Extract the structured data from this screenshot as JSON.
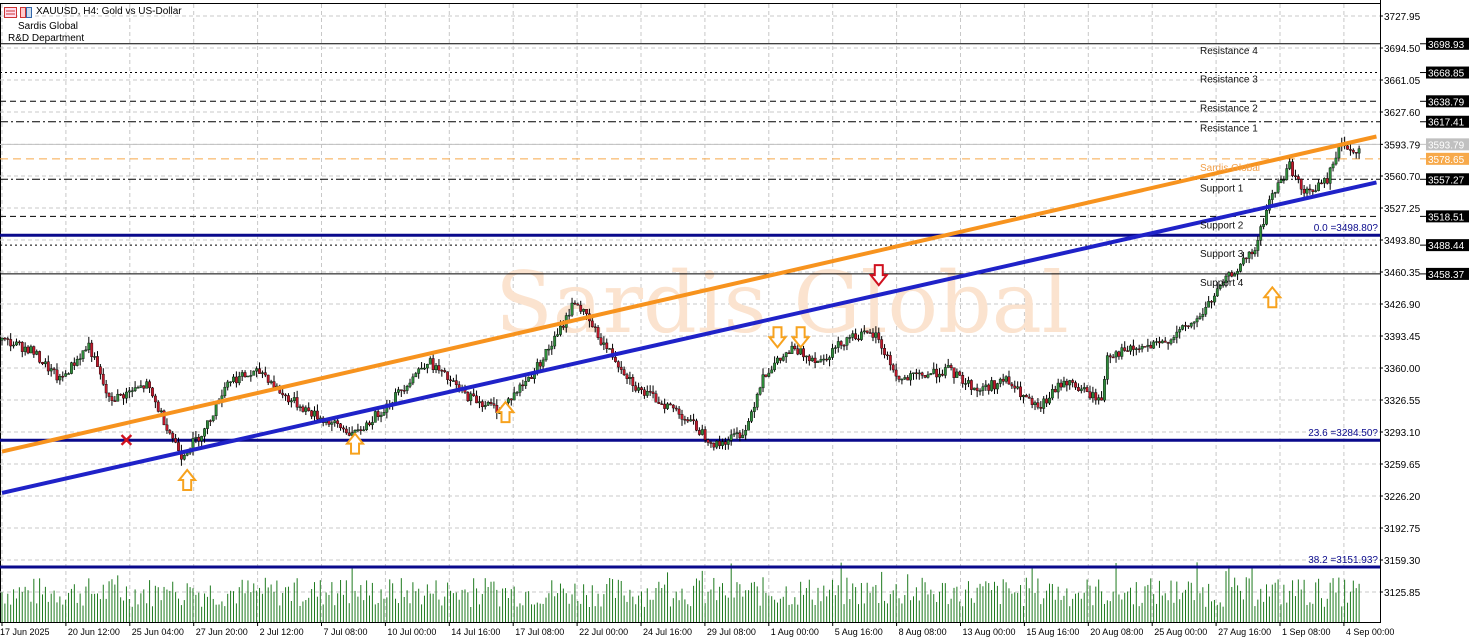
{
  "header": {
    "symbol_title": "XAUUSD, H4:  Gold vs US-Dollar",
    "company": "Sardis Global",
    "department": "R&D Department",
    "icons": [
      "candlestick-menu-icon",
      "template-icon"
    ]
  },
  "watermark": "Sardis Global",
  "colors": {
    "orange_trend": "#f7931e",
    "blue_trend": "#1f22c8",
    "fib_line": "#0a0a8c",
    "bull_candle": "#2e8b3a",
    "bear_candle": "#c0182a",
    "volume": "#1e7a1e",
    "watermark": "#fbe3cf",
    "arrow_up": "#f7a21e",
    "arrow_down_red": "#d0101e"
  },
  "chart_data": {
    "type": "candlestick",
    "symbol": "XAUUSD",
    "timeframe": "H4",
    "ylim": [
      3110,
      3742
    ],
    "y_ticks": [
      3727.95,
      3694.5,
      3661.05,
      3627.6,
      3593.79,
      3560.7,
      3527.25,
      3493.8,
      3460.35,
      3426.9,
      3393.45,
      3360.0,
      3326.55,
      3293.1,
      3259.65,
      3226.2,
      3192.75,
      3159.3,
      3125.85
    ],
    "x_labels": [
      "17 Jun 2025",
      "20 Jun 12:00",
      "25 Jun 04:00",
      "27 Jun 20:00",
      "2 Jul 12:00",
      "7 Jul 08:00",
      "10 Jul 00:00",
      "14 Jul 16:00",
      "17 Jul 08:00",
      "22 Jul 00:00",
      "24 Jul 16:00",
      "29 Jul 08:00",
      "1 Aug 00:00",
      "5 Aug 16:00",
      "8 Aug 08:00",
      "13 Aug 00:00",
      "15 Aug 16:00",
      "20 Aug 08:00",
      "25 Aug 00:00",
      "27 Aug 16:00",
      "1 Sep 08:00",
      "4 Sep 00:00"
    ],
    "total_bars": 470,
    "price_path": [
      [
        0,
        3389
      ],
      [
        10,
        3379
      ],
      [
        20,
        3347
      ],
      [
        30,
        3384
      ],
      [
        37,
        3326
      ],
      [
        50,
        3342
      ],
      [
        62,
        3269
      ],
      [
        70,
        3295
      ],
      [
        78,
        3347
      ],
      [
        90,
        3356
      ],
      [
        97,
        3332
      ],
      [
        108,
        3311
      ],
      [
        122,
        3290
      ],
      [
        133,
        3321
      ],
      [
        147,
        3368
      ],
      [
        160,
        3332
      ],
      [
        172,
        3316
      ],
      [
        183,
        3353
      ],
      [
        192,
        3394
      ],
      [
        198,
        3431
      ],
      [
        207,
        3389
      ],
      [
        220,
        3337
      ],
      [
        233,
        3316
      ],
      [
        247,
        3279
      ],
      [
        257,
        3295
      ],
      [
        263,
        3353
      ],
      [
        273,
        3379
      ],
      [
        283,
        3368
      ],
      [
        293,
        3394
      ],
      [
        302,
        3394
      ],
      [
        310,
        3347
      ],
      [
        327,
        3358
      ],
      [
        337,
        3337
      ],
      [
        347,
        3347
      ],
      [
        358,
        3316
      ],
      [
        367,
        3347
      ],
      [
        380,
        3326
      ],
      [
        382,
        3374
      ],
      [
        400,
        3384
      ],
      [
        413,
        3410
      ],
      [
        423,
        3452
      ],
      [
        433,
        3483
      ],
      [
        438,
        3535
      ],
      [
        445,
        3572
      ],
      [
        450,
        3541
      ],
      [
        458,
        3556
      ],
      [
        462,
        3593
      ],
      [
        466,
        3588
      ]
    ],
    "current_price": 3593.79,
    "levels": [
      {
        "label": "Resistance 4",
        "price": 3698.93,
        "style": "solid"
      },
      {
        "label": "Resistance 3",
        "price": 3668.85,
        "style": "dotted"
      },
      {
        "label": "Resistance 2",
        "price": 3638.79,
        "style": "dashed"
      },
      {
        "label": "Resistance 1",
        "price": 3617.41,
        "style": "dashdot"
      },
      {
        "label": "Sardis Global",
        "price": 3578.65,
        "style": "orange-dashed"
      },
      {
        "label": "Support 1",
        "price": 3557.27,
        "style": "dashdot"
      },
      {
        "label": "Support 2",
        "price": 3518.51,
        "style": "dashed"
      },
      {
        "label": "Support 3",
        "price": 3488.44,
        "style": "dotted"
      },
      {
        "label": "Support 4",
        "price": 3458.37,
        "style": "solid"
      }
    ],
    "fibonacci": [
      {
        "label": "0.0 =3498.80?",
        "price": 3498.8
      },
      {
        "label": "23.6 =3284.50?",
        "price": 3284.5
      },
      {
        "label": "38.2 =3151.93?",
        "price": 3151.93
      }
    ],
    "trendlines": [
      {
        "name": "orange-channel-top",
        "color": "#f7931e",
        "from": [
          0,
          3272.7
        ],
        "to": [
          475,
          3602
        ]
      },
      {
        "name": "blue-channel-bottom",
        "color": "#1f22c8",
        "from": [
          0,
          3229.4
        ],
        "to": [
          475,
          3554
        ]
      }
    ],
    "markers": [
      {
        "type": "arrow-up",
        "bar": 64,
        "price": 3245
      },
      {
        "type": "arrow-up",
        "bar": 122,
        "price": 3283
      },
      {
        "type": "arrow-up",
        "bar": 174,
        "price": 3316
      },
      {
        "type": "arrow-up",
        "bar": 439,
        "price": 3436
      },
      {
        "type": "arrow-down",
        "bar": 268,
        "price": 3390
      },
      {
        "type": "arrow-down",
        "bar": 276,
        "price": 3390
      },
      {
        "type": "arrow-down-red",
        "bar": 303,
        "price": 3455
      },
      {
        "type": "cross-red",
        "bar": 43,
        "price": 3284
      }
    ]
  }
}
